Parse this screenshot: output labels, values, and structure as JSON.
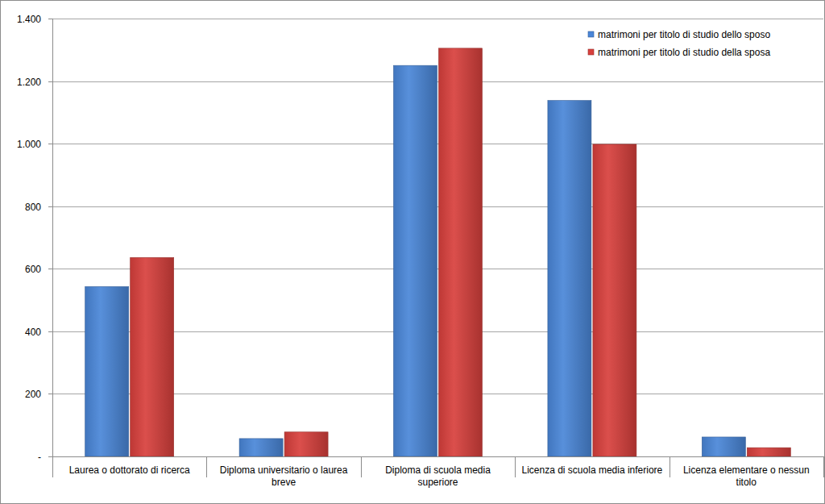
{
  "chart_data": {
    "type": "bar",
    "categories": [
      "Laurea o dottorato di ricerca",
      "Diploma universitario o laurea breve",
      "Diploma di scuola media superiore",
      "Licenza di scuola media inferiore",
      "Licenza elementare o nessun titolo"
    ],
    "series": [
      {
        "name": "matrimoni per titolo di studio dello sposo",
        "color": "#4a86d8",
        "values": [
          543,
          57,
          1250,
          1138,
          62
        ]
      },
      {
        "name": "matrimoni per titolo di studio della sposa",
        "color": "#d8403c",
        "values": [
          636,
          78,
          1305,
          998,
          28
        ]
      }
    ],
    "ylim": [
      0,
      1400
    ],
    "yticks": [
      {
        "value": 0,
        "label": "-"
      },
      200,
      400,
      600,
      800,
      {
        "value": 1000,
        "label": "1.000"
      },
      {
        "value": 1200,
        "label": "1.200"
      },
      {
        "value": 1400,
        "label": "1.400"
      }
    ],
    "grid": true,
    "legend": "top-right"
  }
}
